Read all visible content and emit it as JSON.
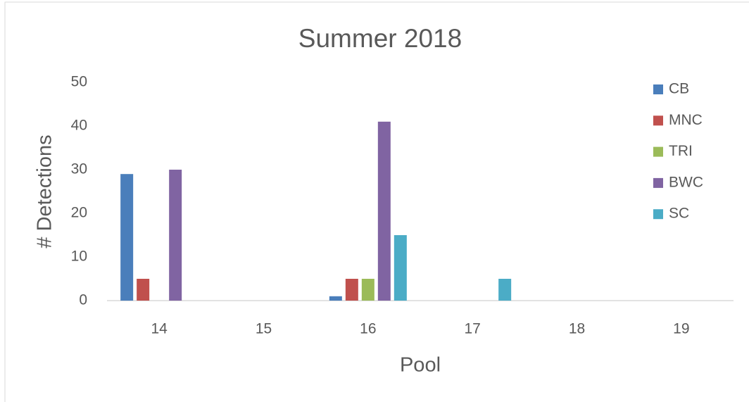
{
  "chart_data": {
    "type": "bar",
    "title": "Summer 2018",
    "x_label": "Pool",
    "y_label": "# Detections",
    "categories": [
      "14",
      "15",
      "16",
      "17",
      "18",
      "19"
    ],
    "series": [
      {
        "name": "CB",
        "color": "#4a7ebb",
        "values": [
          29,
          0,
          1,
          0,
          0,
          0
        ]
      },
      {
        "name": "MNC",
        "color": "#c0504d",
        "values": [
          5,
          0,
          5,
          0,
          0,
          0
        ]
      },
      {
        "name": "TRI",
        "color": "#9bbb59",
        "values": [
          0,
          0,
          5,
          0,
          0,
          0
        ]
      },
      {
        "name": "BWC",
        "color": "#8064a2",
        "values": [
          30,
          0,
          41,
          0,
          0,
          0
        ]
      },
      {
        "name": "SC",
        "color": "#4bacc6",
        "values": [
          0,
          0,
          15,
          5,
          0,
          0
        ]
      }
    ],
    "ylim": [
      0,
      50
    ],
    "yticks": [
      0,
      10,
      20,
      30,
      40,
      50
    ],
    "grid": false,
    "legend": "right"
  }
}
